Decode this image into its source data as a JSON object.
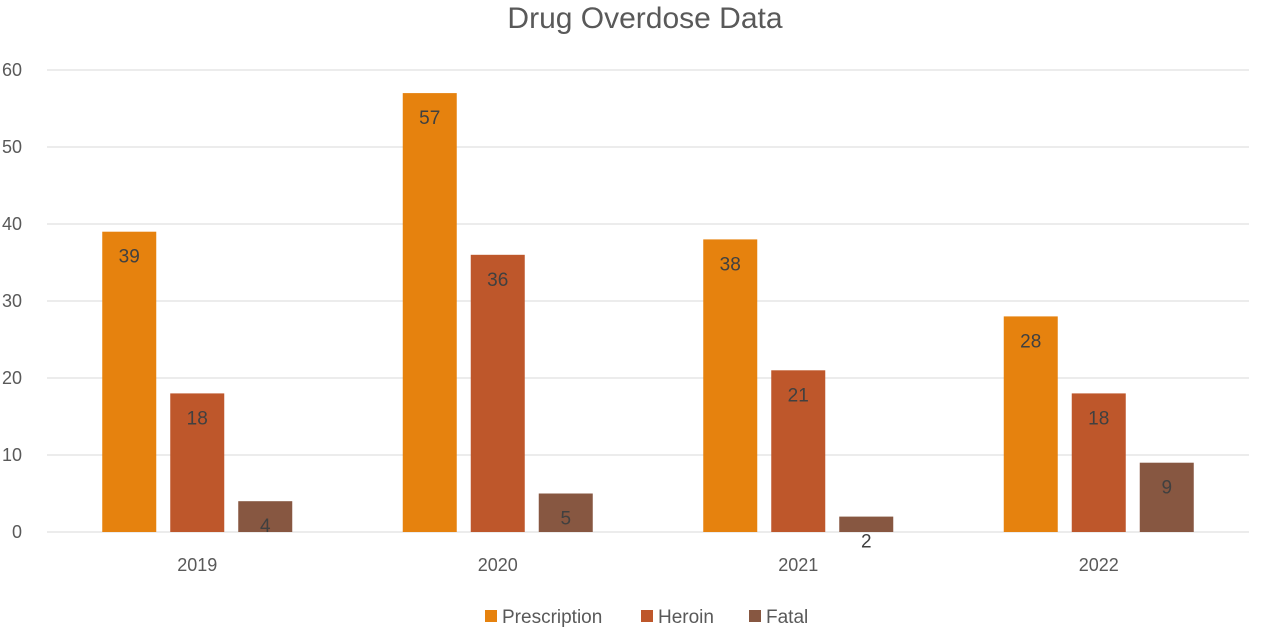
{
  "chart_data": {
    "type": "bar",
    "title": "Drug Overdose Data",
    "xlabel": "",
    "ylabel": "",
    "categories": [
      "2019",
      "2020",
      "2021",
      "2022"
    ],
    "series": [
      {
        "name": "Prescription",
        "values": [
          39,
          57,
          38,
          28
        ],
        "color": "#E6820E"
      },
      {
        "name": "Heroin",
        "values": [
          18,
          36,
          21,
          18
        ],
        "color": "#BE572B"
      },
      {
        "name": "Fatal",
        "values": [
          4,
          5,
          2,
          9
        ],
        "color": "#875741"
      }
    ],
    "ylim": [
      0,
      60
    ],
    "yticks": [
      0,
      10,
      20,
      30,
      40,
      50,
      60
    ],
    "grid": true,
    "legend": "bottom-center",
    "data_labels": true
  }
}
